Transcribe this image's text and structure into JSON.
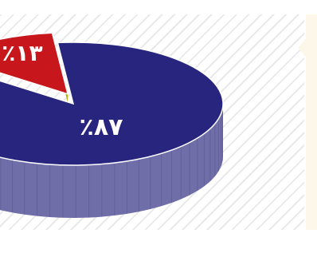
{
  "chart_data": {
    "type": "pie",
    "title": "",
    "slices": [
      {
        "label": "٪۸۷",
        "value": 87,
        "color": "#27257d",
        "side_color": "#706ea8"
      },
      {
        "label": "٪۱۳",
        "value": 13,
        "color": "#c8161d",
        "side_color": "#b5b10f"
      }
    ],
    "legend": "none"
  }
}
